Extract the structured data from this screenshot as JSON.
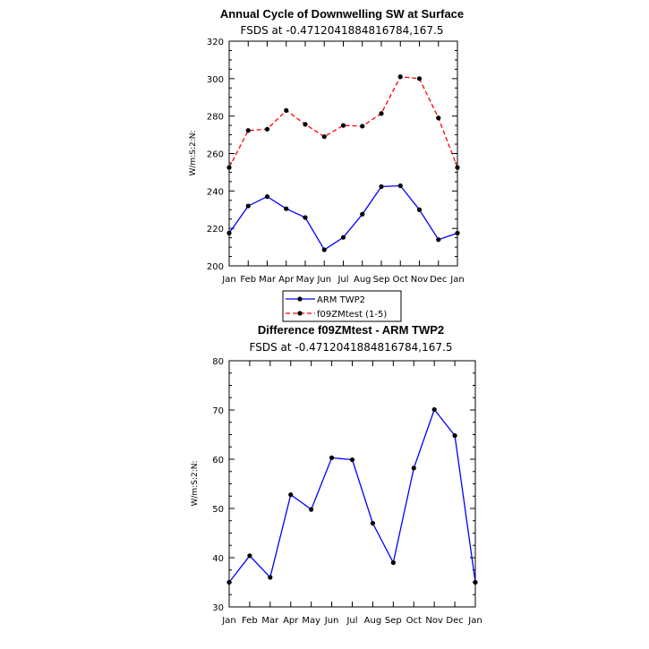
{
  "chart_data": [
    {
      "type": "line",
      "title": "Annual Cycle of Downwelling SW at Surface",
      "subtitle": "FSDS at -0.4712041884816784,167.5",
      "ylabel": "W/m:S:2:N:",
      "xlabel": "",
      "categories": [
        "Jan",
        "Feb",
        "Mar",
        "Apr",
        "May",
        "Jun",
        "Jul",
        "Aug",
        "Sep",
        "Oct",
        "Nov",
        "Dec",
        "Jan"
      ],
      "ylim": [
        200,
        320
      ],
      "yticks": [
        200,
        220,
        240,
        260,
        280,
        300,
        320
      ],
      "series": [
        {
          "name": "ARM TWP2",
          "color": "#0000ff",
          "style": "solid",
          "values": [
            217.5,
            232,
            237,
            230.5,
            225.8,
            208.6,
            215.2,
            227.6,
            242.3,
            242.8,
            230,
            214,
            217.5
          ]
        },
        {
          "name": "f09ZMtest (1-5)",
          "color": "#ff0000",
          "style": "dashed",
          "values": [
            252.5,
            272.3,
            273,
            283,
            275.6,
            269,
            275,
            274.6,
            281.4,
            301,
            300,
            279,
            252.5
          ]
        }
      ],
      "legend": {
        "placement": "below"
      }
    },
    {
      "type": "line",
      "title": "Difference f09ZMtest - ARM TWP2",
      "subtitle": "FSDS at -0.4712041884816784,167.5",
      "ylabel": "W/m:S:2:N:",
      "xlabel": "",
      "categories": [
        "Jan",
        "Feb",
        "Mar",
        "Apr",
        "May",
        "Jun",
        "Jul",
        "Aug",
        "Sep",
        "Oct",
        "Nov",
        "Dec",
        "Jan"
      ],
      "ylim": [
        30,
        80
      ],
      "yticks": [
        30,
        40,
        50,
        60,
        70,
        80
      ],
      "series": [
        {
          "name": "Difference",
          "color": "#0000ff",
          "style": "solid",
          "values": [
            35,
            40.4,
            36,
            52.8,
            49.8,
            60.3,
            59.9,
            47,
            39,
            58.2,
            70.1,
            64.8,
            35
          ]
        }
      ]
    }
  ]
}
